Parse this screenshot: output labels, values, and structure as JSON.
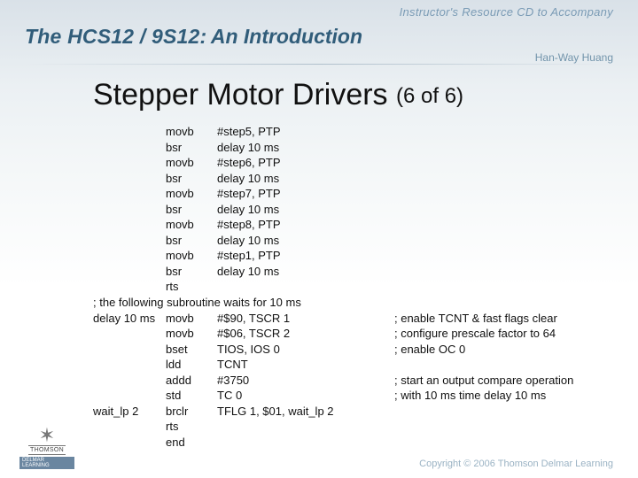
{
  "top_label": "Instructor's Resource CD to Accompany",
  "banner": {
    "title": "The HCS12 / 9S12:",
    "sub": "An Introduction"
  },
  "author": "Han-Way Huang",
  "heading_main": "Stepper Motor Drivers ",
  "heading_part": "(6 of 6)",
  "code": [
    {
      "label": " ",
      "mnem": "movb",
      "op": "#step5, PTP",
      "comment": ""
    },
    {
      "label": " ",
      "mnem": "bsr",
      "op": "delay 10 ms",
      "comment": ""
    },
    {
      "label": " ",
      "mnem": "movb",
      "op": "#step6, PTP",
      "comment": ""
    },
    {
      "label": " ",
      "mnem": "bsr",
      "op": "delay 10 ms",
      "comment": ""
    },
    {
      "label": " ",
      "mnem": "movb",
      "op": "#step7, PTP",
      "comment": ""
    },
    {
      "label": " ",
      "mnem": "bsr",
      "op": "delay 10 ms",
      "comment": ""
    },
    {
      "label": " ",
      "mnem": "movb",
      "op": "#step8, PTP",
      "comment": ""
    },
    {
      "label": " ",
      "mnem": "bsr",
      "op": "delay 10 ms",
      "comment": ""
    },
    {
      "label": " ",
      "mnem": "movb",
      "op": "#step1, PTP",
      "comment": ""
    },
    {
      "label": " ",
      "mnem": "bsr",
      "op": "delay 10 ms",
      "comment": ""
    },
    {
      "label": " ",
      "mnem": "rts",
      "op": "",
      "comment": ""
    },
    {
      "label": "; the following subroutine waits for 10 ms",
      "mnem": "",
      "op": "",
      "comment": "",
      "full": true
    },
    {
      "label": "delay 10 ms",
      "mnem": "movb",
      "op": "#$90, TSCR 1",
      "comment": "; enable TCNT & fast flags clear"
    },
    {
      "label": " ",
      "mnem": "movb",
      "op": "#$06, TSCR 2",
      "comment": "; configure prescale factor to 64"
    },
    {
      "label": " ",
      "mnem": "bset",
      "op": "TIOS, IOS 0",
      "comment": "; enable OC 0"
    },
    {
      "label": " ",
      "mnem": "ldd",
      "op": "TCNT",
      "comment": ""
    },
    {
      "label": " ",
      "mnem": "addd",
      "op": "#3750",
      "comment": "; start an output compare operation"
    },
    {
      "label": " ",
      "mnem": "std",
      "op": "TC 0",
      "comment": "; with 10 ms time delay 10 ms"
    },
    {
      "label": "wait_lp 2",
      "mnem": "brclr",
      "op": "TFLG 1, $01, wait_lp 2",
      "comment": ""
    },
    {
      "label": " ",
      "mnem": "rts",
      "op": "",
      "comment": ""
    },
    {
      "label": " ",
      "mnem": "end",
      "op": "",
      "comment": ""
    }
  ],
  "thomson": "THOMSON",
  "delmar_sub": "DELMAR LEARNING",
  "copyright": "Copyright © 2006 Thomson Delmar Learning"
}
